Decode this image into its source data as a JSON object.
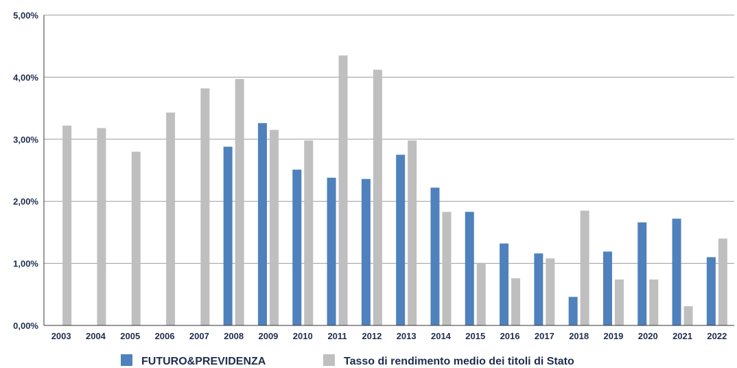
{
  "chart_data": {
    "type": "bar",
    "categories": [
      "2003",
      "2004",
      "2005",
      "2006",
      "2007",
      "2008",
      "2009",
      "2010",
      "2011",
      "2012",
      "2013",
      "2014",
      "2015",
      "2016",
      "2017",
      "2018",
      "2019",
      "2020",
      "2021",
      "2022"
    ],
    "series": [
      {
        "name": "FUTURO&PREVIDENZA",
        "color": "#4f81bd",
        "values": [
          null,
          null,
          null,
          null,
          null,
          2.88,
          3.26,
          2.51,
          2.38,
          2.36,
          2.75,
          2.22,
          1.83,
          1.32,
          1.16,
          0.46,
          1.19,
          1.66,
          1.72,
          1.1
        ]
      },
      {
        "name": "Tasso di rendimento medio dei titoli di Stato",
        "color": "#bfbfbf",
        "values": [
          3.22,
          3.18,
          2.8,
          3.43,
          3.82,
          3.97,
          3.15,
          2.98,
          4.35,
          4.12,
          2.98,
          1.83,
          1.01,
          0.76,
          1.08,
          1.85,
          0.74,
          0.74,
          0.31,
          1.4
        ]
      }
    ],
    "yticks": [
      "0,00%",
      "1,00%",
      "2,00%",
      "3,00%",
      "4,00%",
      "5,00%"
    ],
    "ylim": [
      0,
      5
    ],
    "grid": true,
    "legend": "bottom-center",
    "title": "",
    "xlabel": "",
    "ylabel": ""
  }
}
